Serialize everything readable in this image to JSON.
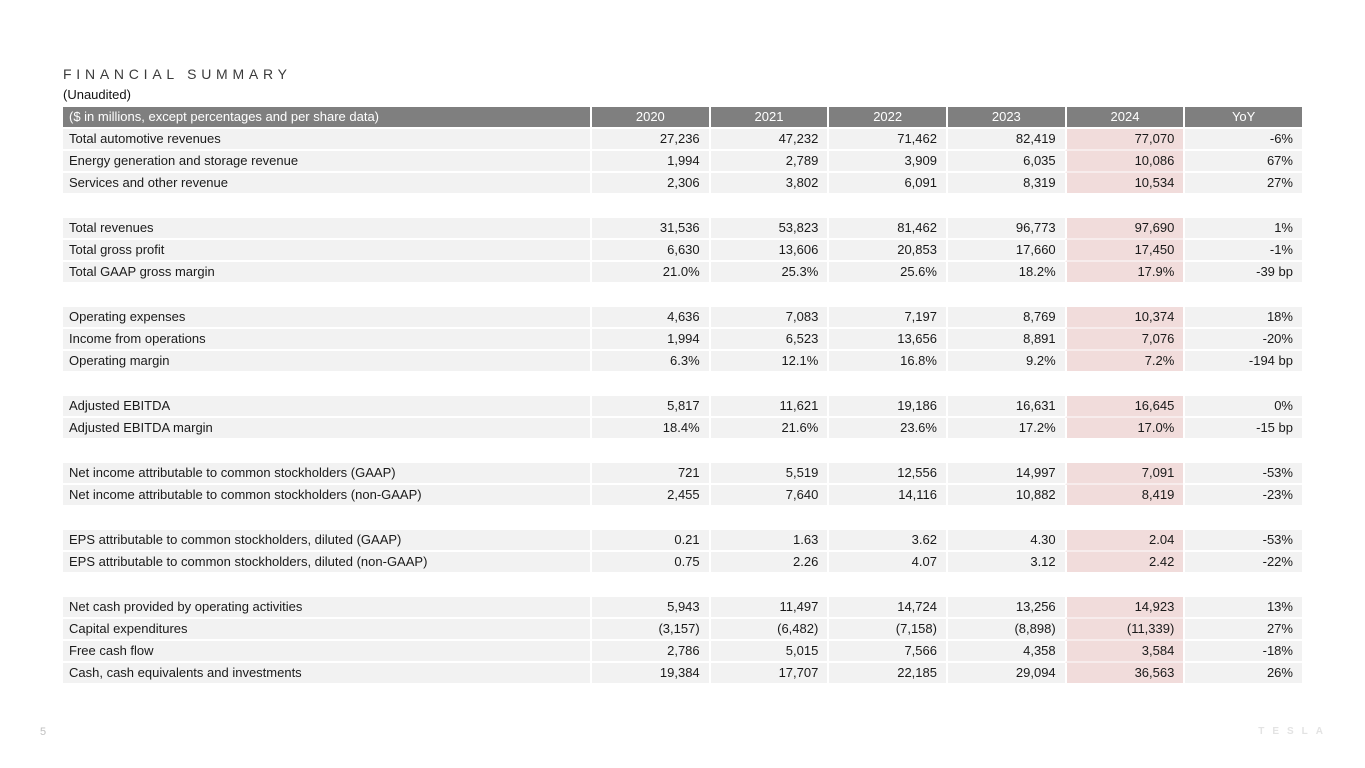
{
  "title": "FINANCIAL SUMMARY",
  "subtitle": "(Unaudited)",
  "footer": {
    "page_number": "5",
    "brand": "TESLA"
  },
  "colors": {
    "header_bg": "#7f7f7f",
    "header_text": "#ffffff",
    "row_bg": "#f2f2f2",
    "highlight_bg": "#f1dcdb",
    "highlight_separator": "#f7ecec",
    "title_text": "#3b3b3b"
  },
  "table": {
    "columns": [
      "($ in millions, except percentages and per share data)",
      "2020",
      "2021",
      "2022",
      "2023",
      "2024",
      "YoY"
    ],
    "highlight_column": "2024",
    "groups": [
      {
        "rows": [
          {
            "label": "Total automotive revenues",
            "values": [
              "27,236",
              "47,232",
              "71,462",
              "82,419",
              "77,070",
              "-6%"
            ]
          },
          {
            "label": "Energy generation and storage revenue",
            "values": [
              "1,994",
              "2,789",
              "3,909",
              "6,035",
              "10,086",
              "67%"
            ]
          },
          {
            "label": "Services and other revenue",
            "values": [
              "2,306",
              "3,802",
              "6,091",
              "8,319",
              "10,534",
              "27%"
            ]
          }
        ]
      },
      {
        "rows": [
          {
            "label": "Total revenues",
            "values": [
              "31,536",
              "53,823",
              "81,462",
              "96,773",
              "97,690",
              "1%"
            ]
          },
          {
            "label": "Total gross profit",
            "values": [
              "6,630",
              "13,606",
              "20,853",
              "17,660",
              "17,450",
              "-1%"
            ]
          },
          {
            "label": "Total GAAP gross margin",
            "values": [
              "21.0%",
              "25.3%",
              "25.6%",
              "18.2%",
              "17.9%",
              "-39 bp"
            ]
          }
        ]
      },
      {
        "rows": [
          {
            "label": "Operating expenses",
            "values": [
              "4,636",
              "7,083",
              "7,197",
              "8,769",
              "10,374",
              "18%"
            ]
          },
          {
            "label": "Income from operations",
            "values": [
              "1,994",
              "6,523",
              "13,656",
              "8,891",
              "7,076",
              "-20%"
            ]
          },
          {
            "label": "Operating margin",
            "values": [
              "6.3%",
              "12.1%",
              "16.8%",
              "9.2%",
              "7.2%",
              "-194 bp"
            ]
          }
        ]
      },
      {
        "rows": [
          {
            "label": "Adjusted EBITDA",
            "values": [
              "5,817",
              "11,621",
              "19,186",
              "16,631",
              "16,645",
              "0%"
            ]
          },
          {
            "label": "Adjusted EBITDA margin",
            "values": [
              "18.4%",
              "21.6%",
              "23.6%",
              "17.2%",
              "17.0%",
              "-15 bp"
            ]
          }
        ]
      },
      {
        "rows": [
          {
            "label": "Net income attributable to common stockholders (GAAP)",
            "values": [
              "721",
              "5,519",
              "12,556",
              "14,997",
              "7,091",
              "-53%"
            ]
          },
          {
            "label": "Net income attributable to common stockholders (non-GAAP)",
            "values": [
              "2,455",
              "7,640",
              "14,116",
              "10,882",
              "8,419",
              "-23%"
            ]
          }
        ]
      },
      {
        "rows": [
          {
            "label": "EPS attributable to common stockholders, diluted (GAAP)",
            "values": [
              "0.21",
              "1.63",
              "3.62",
              "4.30",
              "2.04",
              "-53%"
            ]
          },
          {
            "label": "EPS attributable to common stockholders, diluted (non-GAAP)",
            "values": [
              "0.75",
              "2.26",
              "4.07",
              "3.12",
              "2.42",
              "-22%"
            ]
          }
        ]
      },
      {
        "rows": [
          {
            "label": "Net cash provided by operating activities",
            "values": [
              "5,943",
              "11,497",
              "14,724",
              "13,256",
              "14,923",
              "13%"
            ]
          },
          {
            "label": "Capital expenditures",
            "values": [
              "(3,157)",
              "(6,482)",
              "(7,158)",
              "(8,898)",
              "(11,339)",
              "27%"
            ]
          },
          {
            "label": "Free cash flow",
            "values": [
              "2,786",
              "5,015",
              "7,566",
              "4,358",
              "3,584",
              "-18%"
            ]
          },
          {
            "label": "Cash, cash equivalents and investments",
            "values": [
              "19,384",
              "17,707",
              "22,185",
              "29,094",
              "36,563",
              "26%"
            ]
          }
        ]
      }
    ]
  }
}
